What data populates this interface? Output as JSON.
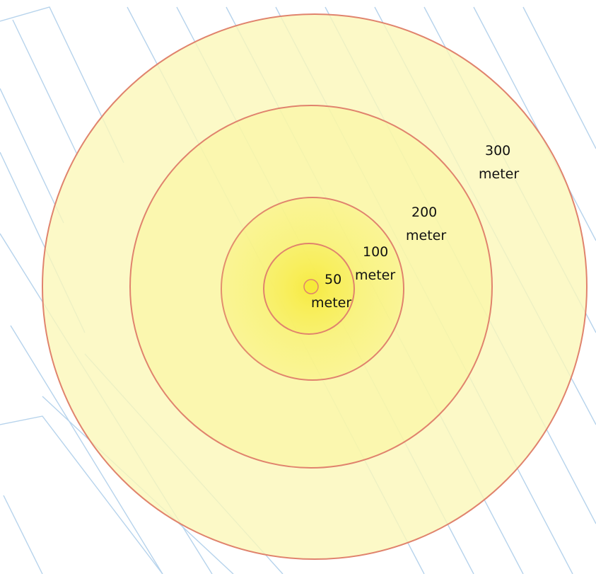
{
  "map": {
    "colors": {
      "background": "#ffffff",
      "parcel_line": "#b6d3ec",
      "ring_stroke": "#e0836d",
      "fill_outer": "#fbf8b9",
      "fill_inner": "#f8f170",
      "center_fill": "#f6ea3a"
    },
    "buffers": [
      {
        "distance": "50",
        "unit": "meter"
      },
      {
        "distance": "100",
        "unit": "meter"
      },
      {
        "distance": "200",
        "unit": "meter"
      },
      {
        "distance": "300",
        "unit": "meter"
      }
    ]
  }
}
